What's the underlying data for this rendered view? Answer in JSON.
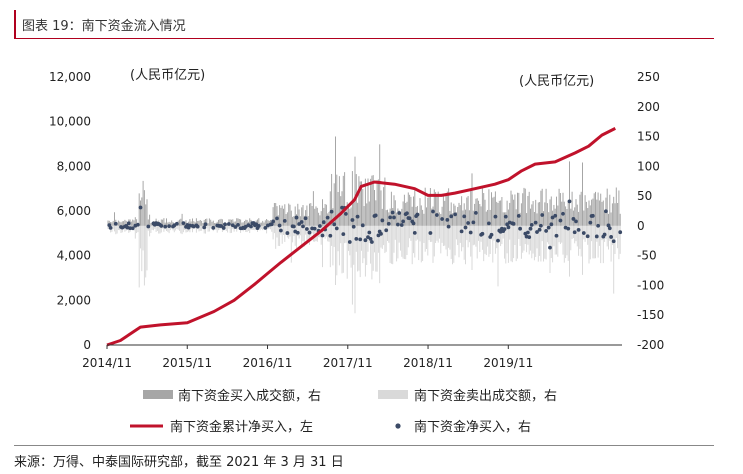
{
  "header": {
    "title": "图表 19：南下资金流入情况"
  },
  "footer": {
    "source": "来源：万得、中泰国际研究部，截至 2021 年 3 月 31 日"
  },
  "chart_data": {
    "type": "line",
    "left_axis": {
      "unit_label": "(人民币亿元)",
      "ylim": [
        0,
        12000
      ],
      "ticks": [
        "0",
        "2,000",
        "4,000",
        "6,000",
        "8,000",
        "10,000",
        "12,000"
      ]
    },
    "right_axis": {
      "unit_label": "(人民币亿元)",
      "ylim": [
        -200,
        250
      ],
      "ticks": [
        "-200",
        "-150",
        "-100",
        "-50",
        "0",
        "50",
        "100",
        "150",
        "200",
        "250"
      ]
    },
    "x_axis": {
      "ticks": [
        "2014/11",
        "2015/11",
        "2016/11",
        "2017/11",
        "2018/11",
        "2019/11"
      ]
    },
    "grid": false,
    "legend_position": "bottom",
    "colors": {
      "cumulative": "#c0122b",
      "buy": "#a6a6a6",
      "sell": "#d9d9d9",
      "net": "#3b4a66"
    },
    "series": [
      {
        "name": "南下资金累计净买入，左",
        "axis": "left",
        "style": "line",
        "x": [
          "2014/11",
          "2015/01",
          "2015/04",
          "2015/07",
          "2015/11",
          "2016/03",
          "2016/06",
          "2016/09",
          "2016/11",
          "2017/01",
          "2017/04",
          "2017/07",
          "2017/10",
          "2017/12",
          "2018/01",
          "2018/03",
          "2018/06",
          "2018/09",
          "2018/11",
          "2019/01",
          "2019/03",
          "2019/06",
          "2019/09",
          "2019/11",
          "2020/01",
          "2020/03",
          "2020/06",
          "2020/09",
          "2020/11",
          "2021/01",
          "2021/03"
        ],
        "values": [
          0,
          200,
          800,
          900,
          1000,
          1500,
          2000,
          2700,
          3200,
          3700,
          4400,
          5100,
          5900,
          6500,
          7100,
          7300,
          7200,
          7000,
          6700,
          6700,
          6800,
          7000,
          7200,
          7400,
          7800,
          8100,
          8200,
          8600,
          8900,
          9400,
          9700
        ]
      },
      {
        "name": "南下资金买入成交额，右",
        "axis": "right",
        "style": "bar"
      },
      {
        "name": "南下资金卖出成交额，右",
        "axis": "right",
        "style": "bar"
      },
      {
        "name": "南下资金净买入，右",
        "axis": "right",
        "style": "scatter"
      }
    ],
    "legend": [
      {
        "label": "南下资金买入成交额，右",
        "marker": "bar-dark"
      },
      {
        "label": "南下资金卖出成交额，右",
        "marker": "bar-light"
      },
      {
        "label": "南下资金累计净买入，左",
        "marker": "line"
      },
      {
        "label": "南下资金净买入，右",
        "marker": "dot"
      }
    ]
  }
}
